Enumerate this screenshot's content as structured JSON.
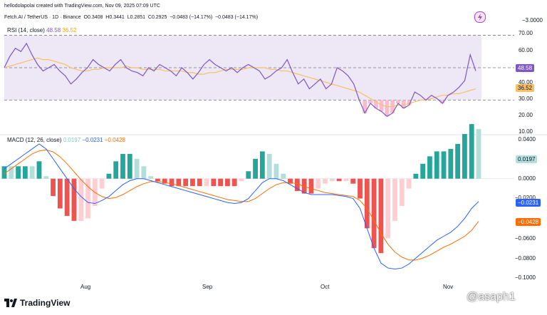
{
  "header": {
    "credit": "hellodolapolai created with TradingView.com, Nov 09, 2025 07:09 UTC",
    "symbol": "Fetch.AI / TetherUS · 1D · Binance",
    "o_label": "O",
    "o": "0.3408",
    "h_label": "H",
    "h": "0.3441",
    "l_label": "L",
    "l": "0.2851",
    "c_label": "C",
    "c": "0.2925",
    "change": "−0.0483 (−14.17%)",
    "change2": "−0.0483 (−14.17%)",
    "right_value": "−3.0000"
  },
  "rsi": {
    "title": "RSI (14, close)",
    "value": "48.58",
    "ma_value": "36.52",
    "axis_labels": [
      "70.00",
      "60.00",
      "40.00",
      "30.00",
      "20.00",
      "10.00"
    ],
    "colors": {
      "line": "#7e57c2",
      "ma": "#f7c064",
      "band": "#ede7f6",
      "oversold": "#f8bbd0"
    }
  },
  "macd": {
    "title": "MACD (12, 26, close)",
    "hist_value": "0.0197",
    "macd_value": "−0.0231",
    "signal_value": "−0.0428",
    "axis_labels": [
      "0.0400",
      "0.0000",
      "−0.0200",
      "−0.0600",
      "−0.0800",
      "−0.1000"
    ],
    "colors": {
      "macd": "#2962ff",
      "signal": "#ff6d00",
      "hist_up": "#26a69a",
      "hist_up_light": "#b2dfdb",
      "hist_down": "#ef5350",
      "hist_down_light": "#ffcdd2"
    }
  },
  "x_axis": [
    "Aug",
    "Sep",
    "Oct",
    "Nov"
  ],
  "branding": {
    "logo": "TradingView",
    "watermark": "@asaph1"
  },
  "chart_data": [
    {
      "type": "line",
      "title": "RSI (14, close)",
      "ylim": [
        10,
        72
      ],
      "series": [
        {
          "values": [
            50,
            57,
            62,
            60,
            65,
            58,
            52,
            48,
            50,
            52,
            48,
            45,
            40,
            43,
            47,
            50,
            55,
            52,
            50,
            48,
            52,
            55,
            50,
            48,
            47,
            45,
            50,
            48,
            52,
            50,
            48,
            45,
            50,
            47,
            43,
            47,
            52,
            55,
            52,
            50,
            48,
            50,
            47,
            50,
            52,
            50,
            48,
            43,
            45,
            48,
            50,
            55,
            47,
            40,
            43,
            37,
            40,
            43,
            37,
            40,
            50,
            48,
            45,
            40,
            30,
            22,
            28,
            25,
            23,
            20,
            22,
            28,
            25,
            27,
            35,
            33,
            30,
            33,
            31,
            28,
            33,
            35,
            38,
            42,
            58,
            48
          ]
        },
        {
          "values": [
            50,
            51,
            52,
            53,
            54,
            55,
            56,
            55,
            55,
            54,
            53,
            52,
            50,
            49,
            48,
            48,
            49,
            49,
            50,
            50,
            50,
            50,
            51,
            50,
            50,
            49,
            49,
            49,
            49,
            48,
            48,
            48,
            48,
            47,
            47,
            46,
            46,
            47,
            47,
            48,
            49,
            49,
            49,
            49,
            50,
            50,
            50,
            50,
            49,
            49,
            48,
            48,
            47,
            46,
            45,
            44,
            43,
            42,
            41,
            40,
            39,
            38,
            37,
            36,
            35,
            33,
            31,
            29,
            27,
            26,
            26,
            27,
            27,
            28,
            29,
            30,
            30,
            31,
            32,
            33,
            33,
            34,
            34,
            35,
            36,
            37
          ]
        }
      ]
    },
    {
      "type": "line",
      "title": "MACD (12, 26, close)",
      "ylim": [
        -0.1,
        0.04
      ],
      "series": [
        {
          "values": [
            0.01,
            0.015,
            0.02,
            0.025,
            0.03,
            0.035,
            0.03,
            0.02,
            0.01,
            0.0,
            -0.01,
            -0.018,
            -0.024,
            -0.025,
            -0.022,
            -0.018,
            -0.012,
            -0.006,
            -0.002,
            0.0,
            0.0,
            -0.002,
            -0.004,
            -0.006,
            -0.008,
            -0.01,
            -0.012,
            -0.014,
            -0.016,
            -0.018,
            -0.02,
            -0.022,
            -0.024,
            -0.025,
            -0.024,
            -0.02,
            -0.012,
            -0.004,
            0.0,
            0.0,
            -0.002,
            -0.006,
            -0.01,
            -0.014,
            -0.016,
            -0.016,
            -0.016,
            -0.016,
            -0.017,
            -0.018,
            -0.02,
            -0.03,
            -0.05,
            -0.07,
            -0.085,
            -0.09,
            -0.091,
            -0.09,
            -0.086,
            -0.08,
            -0.074,
            -0.068,
            -0.062,
            -0.058,
            -0.054,
            -0.048,
            -0.04,
            -0.03,
            -0.023
          ]
        },
        {
          "values": [
            0.005,
            0.01,
            0.015,
            0.02,
            0.025,
            0.028,
            0.029,
            0.027,
            0.022,
            0.015,
            0.007,
            -0.001,
            -0.008,
            -0.014,
            -0.018,
            -0.02,
            -0.019,
            -0.016,
            -0.012,
            -0.008,
            -0.005,
            -0.003,
            -0.003,
            -0.004,
            -0.005,
            -0.007,
            -0.009,
            -0.011,
            -0.013,
            -0.015,
            -0.017,
            -0.019,
            -0.021,
            -0.022,
            -0.023,
            -0.023,
            -0.02,
            -0.015,
            -0.01,
            -0.006,
            -0.004,
            -0.004,
            -0.005,
            -0.008,
            -0.01,
            -0.012,
            -0.014,
            -0.015,
            -0.016,
            -0.017,
            -0.018,
            -0.022,
            -0.03,
            -0.042,
            -0.055,
            -0.066,
            -0.074,
            -0.079,
            -0.082,
            -0.082,
            -0.08,
            -0.077,
            -0.073,
            -0.069,
            -0.066,
            -0.062,
            -0.058,
            -0.052,
            -0.043
          ]
        }
      ]
    }
  ]
}
